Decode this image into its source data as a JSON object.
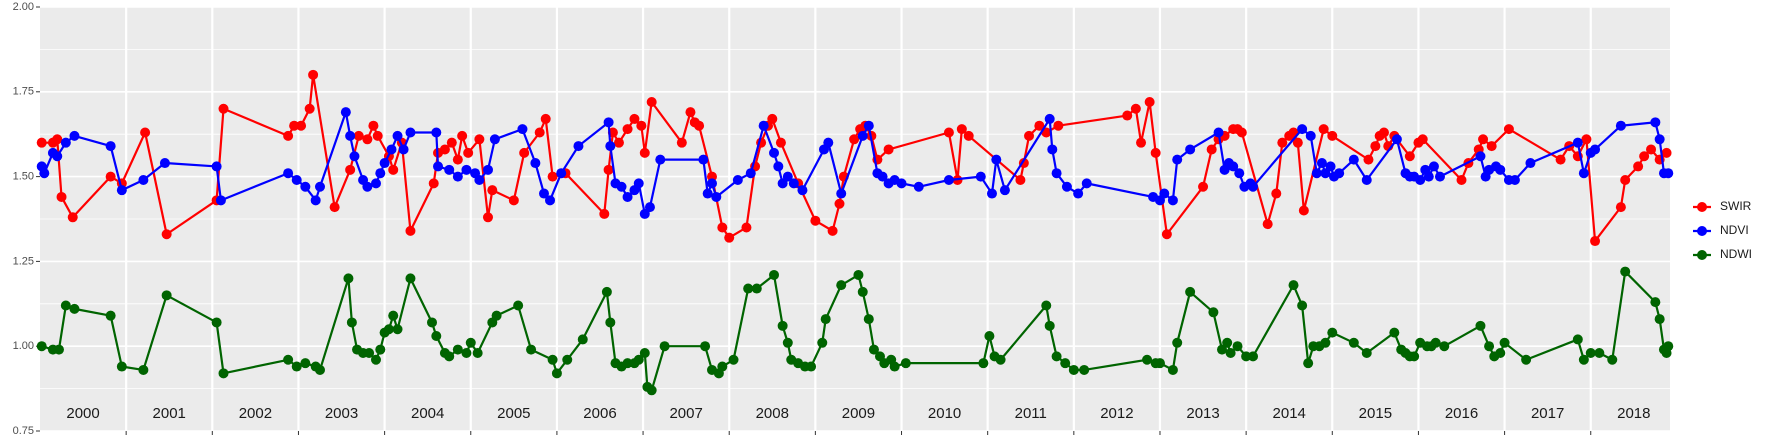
{
  "chart_data": {
    "type": "line",
    "xlim": [
      2000,
      2018.92
    ],
    "ylim": [
      0.75,
      2.0
    ],
    "yticks": [
      {
        "value": 0.75,
        "label": "0.75"
      },
      {
        "value": 1.0,
        "label": "1.00"
      },
      {
        "value": 1.25,
        "label": "1.25"
      },
      {
        "value": 1.5,
        "label": "1.50"
      },
      {
        "value": 1.75,
        "label": "1.75"
      },
      {
        "value": 2.0,
        "label": "2.00"
      }
    ],
    "xticks": [
      {
        "value": 2000.5,
        "label": "2000"
      },
      {
        "value": 2001.5,
        "label": "2001"
      },
      {
        "value": 2002.5,
        "label": "2002"
      },
      {
        "value": 2003.5,
        "label": "2003"
      },
      {
        "value": 2004.5,
        "label": "2004"
      },
      {
        "value": 2005.5,
        "label": "2005"
      },
      {
        "value": 2006.5,
        "label": "2006"
      },
      {
        "value": 2007.5,
        "label": "2007"
      },
      {
        "value": 2008.5,
        "label": "2008"
      },
      {
        "value": 2009.5,
        "label": "2009"
      },
      {
        "value": 2010.5,
        "label": "2010"
      },
      {
        "value": 2011.5,
        "label": "2011"
      },
      {
        "value": 2012.5,
        "label": "2012"
      },
      {
        "value": 2013.5,
        "label": "2013"
      },
      {
        "value": 2014.5,
        "label": "2014"
      },
      {
        "value": 2015.5,
        "label": "2015"
      },
      {
        "value": 2016.5,
        "label": "2016"
      },
      {
        "value": 2017.5,
        "label": "2017"
      },
      {
        "value": 2018.5,
        "label": "2018"
      }
    ],
    "xgrid": [
      2001,
      2002,
      2003,
      2004,
      2005,
      2006,
      2007,
      2008,
      2009,
      2010,
      2011,
      2012,
      2013,
      2014,
      2015,
      2016,
      2017,
      2018
    ],
    "grid": true,
    "legend": "right",
    "series": [
      {
        "name": "SWIR",
        "color": "#ff0000",
        "x": [
          2000.02,
          2000.15,
          2000.2,
          2000.25,
          2000.38,
          2000.82,
          2000.95,
          2001.22,
          2001.47,
          2002.05,
          2002.13,
          2002.88,
          2002.95,
          2003.03,
          2003.13,
          2003.17,
          2003.42,
          2003.6,
          2003.7,
          2003.8,
          2003.87,
          2003.92,
          2004.05,
          2004.1,
          2004.2,
          2004.3,
          2004.57,
          2004.62,
          2004.7,
          2004.78,
          2004.85,
          2004.9,
          2004.97,
          2005.1,
          2005.2,
          2005.25,
          2005.5,
          2005.62,
          2005.8,
          2005.87,
          2005.95,
          2006.1,
          2006.55,
          2006.6,
          2006.65,
          2006.72,
          2006.82,
          2006.9,
          2006.98,
          2007.02,
          2007.1,
          2007.45,
          2007.55,
          2007.6,
          2007.65,
          2007.8,
          2007.92,
          2008.0,
          2008.2,
          2008.3,
          2008.37,
          2008.45,
          2008.5,
          2008.6,
          2008.8,
          2009.0,
          2009.2,
          2009.28,
          2009.33,
          2009.45,
          2009.52,
          2009.58,
          2009.65,
          2009.72,
          2009.85,
          2010.55,
          2010.65,
          2010.7,
          2010.78,
          2011.38,
          2011.42,
          2011.48,
          2011.6,
          2011.68,
          2011.82,
          2012.62,
          2012.72,
          2012.78,
          2012.88,
          2012.95,
          2013.08,
          2013.5,
          2013.6,
          2013.68,
          2013.75,
          2013.85,
          2013.9,
          2013.95,
          2014.25,
          2014.35,
          2014.42,
          2014.5,
          2014.55,
          2014.6,
          2014.67,
          2014.9,
          2015.0,
          2015.42,
          2015.5,
          2015.55,
          2015.6,
          2015.65,
          2015.72,
          2015.9,
          2016.0,
          2016.05,
          2016.5,
          2016.58,
          2016.7,
          2016.75,
          2016.85,
          2017.05,
          2017.65,
          2017.75,
          2017.85,
          2017.95,
          2018.05,
          2018.35,
          2018.4,
          2018.55,
          2018.62,
          2018.7,
          2018.8,
          2018.88
        ],
        "values": [
          1.6,
          1.6,
          1.61,
          1.44,
          1.38,
          1.5,
          1.48,
          1.63,
          1.33,
          1.43,
          1.7,
          1.62,
          1.65,
          1.65,
          1.7,
          1.8,
          1.41,
          1.52,
          1.62,
          1.61,
          1.65,
          1.62,
          1.56,
          1.52,
          1.6,
          1.34,
          1.48,
          1.57,
          1.58,
          1.6,
          1.55,
          1.62,
          1.57,
          1.61,
          1.38,
          1.46,
          1.43,
          1.57,
          1.63,
          1.67,
          1.5,
          1.51,
          1.39,
          1.52,
          1.63,
          1.6,
          1.64,
          1.67,
          1.65,
          1.57,
          1.72,
          1.6,
          1.69,
          1.66,
          1.65,
          1.5,
          1.35,
          1.32,
          1.35,
          1.53,
          1.6,
          1.65,
          1.67,
          1.6,
          1.48,
          1.37,
          1.34,
          1.42,
          1.5,
          1.61,
          1.64,
          1.65,
          1.62,
          1.55,
          1.58,
          1.63,
          1.49,
          1.64,
          1.62,
          1.49,
          1.54,
          1.62,
          1.65,
          1.63,
          1.65,
          1.68,
          1.7,
          1.6,
          1.72,
          1.57,
          1.33,
          1.47,
          1.58,
          1.61,
          1.62,
          1.64,
          1.64,
          1.63,
          1.36,
          1.45,
          1.6,
          1.62,
          1.63,
          1.6,
          1.4,
          1.64,
          1.62,
          1.55,
          1.59,
          1.62,
          1.63,
          1.59,
          1.62,
          1.56,
          1.6,
          1.61,
          1.49,
          1.54,
          1.58,
          1.61,
          1.59,
          1.64,
          1.55,
          1.59,
          1.56,
          1.61,
          1.31,
          1.41,
          1.49,
          1.53,
          1.56,
          1.58,
          1.55,
          1.57
        ]
      },
      {
        "name": "NDVI",
        "color": "#0000ff",
        "x": [
          2000.02,
          2000.05,
          2000.15,
          2000.2,
          2000.3,
          2000.4,
          2000.82,
          2000.95,
          2001.2,
          2001.45,
          2002.05,
          2002.1,
          2002.88,
          2002.98,
          2003.08,
          2003.2,
          2003.25,
          2003.55,
          2003.6,
          2003.65,
          2003.75,
          2003.8,
          2003.9,
          2003.95,
          2004.0,
          2004.08,
          2004.15,
          2004.22,
          2004.3,
          2004.6,
          2004.62,
          2004.75,
          2004.85,
          2004.95,
          2005.05,
          2005.1,
          2005.2,
          2005.28,
          2005.6,
          2005.75,
          2005.85,
          2005.92,
          2006.05,
          2006.25,
          2006.6,
          2006.62,
          2006.68,
          2006.75,
          2006.82,
          2006.9,
          2006.95,
          2007.02,
          2007.08,
          2007.2,
          2007.7,
          2007.75,
          2007.8,
          2007.85,
          2008.1,
          2008.25,
          2008.4,
          2008.52,
          2008.57,
          2008.62,
          2008.68,
          2008.75,
          2008.85,
          2009.1,
          2009.15,
          2009.3,
          2009.55,
          2009.62,
          2009.72,
          2009.78,
          2009.85,
          2009.92,
          2010.0,
          2010.2,
          2010.55,
          2010.92,
          2011.05,
          2011.1,
          2011.2,
          2011.72,
          2011.75,
          2011.8,
          2011.92,
          2012.05,
          2012.15,
          2012.92,
          2013.0,
          2013.05,
          2013.15,
          2013.2,
          2013.35,
          2013.68,
          2013.75,
          2013.8,
          2013.85,
          2013.92,
          2013.98,
          2014.05,
          2014.08,
          2014.65,
          2014.75,
          2014.82,
          2014.88,
          2014.92,
          2014.98,
          2015.02,
          2015.08,
          2015.25,
          2015.4,
          2015.75,
          2015.85,
          2015.9,
          2015.95,
          2016.02,
          2016.08,
          2016.12,
          2016.18,
          2016.25,
          2016.72,
          2016.78,
          2016.82,
          2016.9,
          2016.95,
          2017.05,
          2017.12,
          2017.3,
          2017.85,
          2017.92,
          2018.0,
          2018.05,
          2018.35,
          2018.75,
          2018.8,
          2018.85,
          2018.9
        ],
        "values": [
          1.53,
          1.51,
          1.57,
          1.56,
          1.6,
          1.62,
          1.59,
          1.46,
          1.49,
          1.54,
          1.53,
          1.43,
          1.51,
          1.49,
          1.47,
          1.43,
          1.47,
          1.69,
          1.62,
          1.56,
          1.49,
          1.47,
          1.48,
          1.51,
          1.54,
          1.58,
          1.62,
          1.58,
          1.63,
          1.63,
          1.53,
          1.52,
          1.5,
          1.52,
          1.51,
          1.49,
          1.52,
          1.61,
          1.64,
          1.54,
          1.45,
          1.43,
          1.51,
          1.59,
          1.66,
          1.59,
          1.48,
          1.47,
          1.44,
          1.46,
          1.48,
          1.39,
          1.41,
          1.55,
          1.55,
          1.45,
          1.48,
          1.44,
          1.49,
          1.51,
          1.65,
          1.57,
          1.53,
          1.48,
          1.5,
          1.48,
          1.46,
          1.58,
          1.6,
          1.45,
          1.62,
          1.65,
          1.51,
          1.5,
          1.48,
          1.49,
          1.48,
          1.47,
          1.49,
          1.5,
          1.45,
          1.55,
          1.46,
          1.67,
          1.58,
          1.51,
          1.47,
          1.45,
          1.48,
          1.44,
          1.43,
          1.45,
          1.43,
          1.55,
          1.58,
          1.63,
          1.52,
          1.54,
          1.53,
          1.51,
          1.47,
          1.48,
          1.47,
          1.64,
          1.62,
          1.51,
          1.54,
          1.51,
          1.53,
          1.5,
          1.51,
          1.55,
          1.49,
          1.61,
          1.51,
          1.5,
          1.5,
          1.49,
          1.52,
          1.5,
          1.53,
          1.5,
          1.56,
          1.5,
          1.52,
          1.53,
          1.52,
          1.49,
          1.49,
          1.54,
          1.6,
          1.51,
          1.57,
          1.58,
          1.65,
          1.66,
          1.61,
          1.51,
          1.51
        ]
      },
      {
        "name": "NDWI",
        "color": "#006400",
        "x": [
          2000.02,
          2000.15,
          2000.22,
          2000.3,
          2000.4,
          2000.82,
          2000.95,
          2001.2,
          2001.47,
          2002.05,
          2002.13,
          2002.88,
          2002.98,
          2003.08,
          2003.2,
          2003.25,
          2003.58,
          2003.62,
          2003.68,
          2003.75,
          2003.82,
          2003.9,
          2003.95,
          2004.0,
          2004.05,
          2004.1,
          2004.15,
          2004.3,
          2004.55,
          2004.6,
          2004.7,
          2004.75,
          2004.85,
          2004.95,
          2005.0,
          2005.08,
          2005.25,
          2005.3,
          2005.55,
          2005.7,
          2005.95,
          2006.0,
          2006.12,
          2006.3,
          2006.58,
          2006.62,
          2006.68,
          2006.75,
          2006.82,
          2006.9,
          2006.95,
          2007.02,
          2007.05,
          2007.1,
          2007.25,
          2007.72,
          2007.8,
          2007.88,
          2007.92,
          2008.05,
          2008.22,
          2008.32,
          2008.52,
          2008.62,
          2008.68,
          2008.72,
          2008.8,
          2008.88,
          2008.95,
          2009.08,
          2009.12,
          2009.3,
          2009.5,
          2009.55,
          2009.62,
          2009.68,
          2009.75,
          2009.8,
          2009.88,
          2009.92,
          2010.05,
          2010.95,
          2011.02,
          2011.08,
          2011.15,
          2011.68,
          2011.72,
          2011.8,
          2011.9,
          2012.0,
          2012.12,
          2012.85,
          2012.95,
          2013.0,
          2013.15,
          2013.2,
          2013.35,
          2013.62,
          2013.72,
          2013.78,
          2013.82,
          2013.9,
          2014.0,
          2014.08,
          2014.55,
          2014.65,
          2014.72,
          2014.78,
          2014.85,
          2014.92,
          2015.0,
          2015.25,
          2015.4,
          2015.72,
          2015.8,
          2015.85,
          2015.9,
          2015.95,
          2016.02,
          2016.1,
          2016.15,
          2016.2,
          2016.3,
          2016.72,
          2016.82,
          2016.88,
          2016.95,
          2017.0,
          2017.25,
          2017.85,
          2017.92,
          2018.0,
          2018.1,
          2018.25,
          2018.4,
          2018.75,
          2018.8,
          2018.85,
          2018.88,
          2018.9
        ],
        "values": [
          1.0,
          0.99,
          0.99,
          1.12,
          1.11,
          1.09,
          0.94,
          0.93,
          1.15,
          1.07,
          0.92,
          0.96,
          0.94,
          0.95,
          0.94,
          0.93,
          1.2,
          1.07,
          0.99,
          0.98,
          0.98,
          0.96,
          0.99,
          1.04,
          1.05,
          1.09,
          1.05,
          1.2,
          1.07,
          1.03,
          0.98,
          0.97,
          0.99,
          0.98,
          1.01,
          0.98,
          1.07,
          1.09,
          1.12,
          0.99,
          0.96,
          0.92,
          0.96,
          1.02,
          1.16,
          1.07,
          0.95,
          0.94,
          0.95,
          0.95,
          0.96,
          0.98,
          0.88,
          0.87,
          1.0,
          1.0,
          0.93,
          0.92,
          0.94,
          0.96,
          1.17,
          1.17,
          1.21,
          1.06,
          1.01,
          0.96,
          0.95,
          0.94,
          0.94,
          1.01,
          1.08,
          1.18,
          1.21,
          1.16,
          1.08,
          0.99,
          0.97,
          0.95,
          0.96,
          0.94,
          0.95,
          0.95,
          1.03,
          0.97,
          0.96,
          1.12,
          1.06,
          0.97,
          0.95,
          0.93,
          0.93,
          0.96,
          0.95,
          0.95,
          0.93,
          1.01,
          1.16,
          1.1,
          0.99,
          1.01,
          0.98,
          1.0,
          0.97,
          0.97,
          1.18,
          1.12,
          0.95,
          1.0,
          1.0,
          1.01,
          1.04,
          1.01,
          0.98,
          1.04,
          0.99,
          0.98,
          0.97,
          0.97,
          1.01,
          1.0,
          1.0,
          1.01,
          1.0,
          1.06,
          1.0,
          0.97,
          0.98,
          1.01,
          0.96,
          1.02,
          0.96,
          0.98,
          0.98,
          0.96,
          1.22,
          1.13,
          1.08,
          0.99,
          0.98,
          1.0
        ]
      }
    ]
  }
}
